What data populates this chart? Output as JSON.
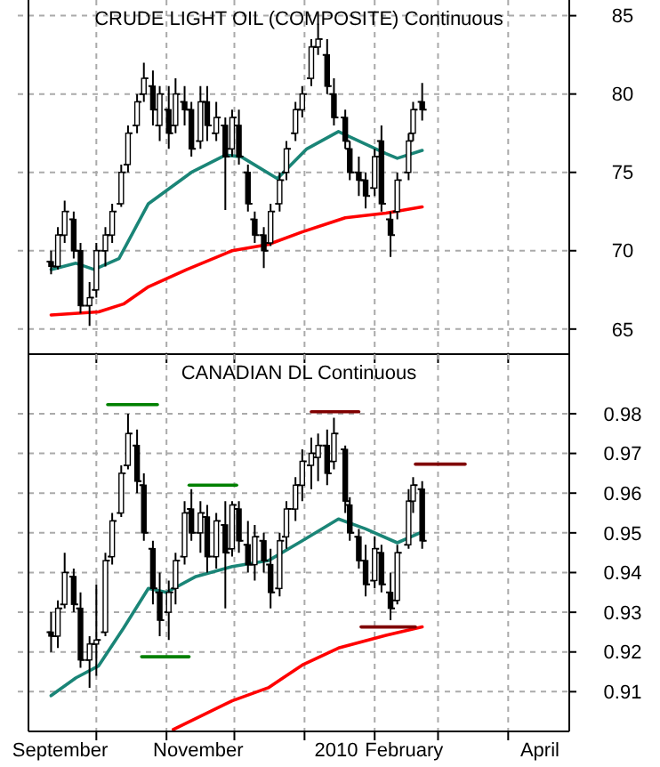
{
  "chart_data": [
    {
      "type": "candlestick",
      "title": "CRUDE LIGHT OIL (COMPOSITE) Continuous",
      "color": "#000000",
      "tick_labels": "y",
      "grid": true,
      "x": [
        "2009-09-11",
        "2009-09-14",
        "2009-09-17",
        "2009-09-21",
        "2009-09-24",
        "2009-09-28",
        "2009-10-01",
        "2009-10-05",
        "2009-10-08",
        "2009-10-12",
        "2009-10-15",
        "2009-10-19",
        "2009-10-22",
        "2009-10-26",
        "2009-10-29",
        "2009-11-02",
        "2009-11-05",
        "2009-11-09",
        "2009-11-12",
        "2009-11-16",
        "2009-11-19",
        "2009-11-23",
        "2009-11-27",
        "2009-11-30",
        "2009-12-03",
        "2009-12-07",
        "2009-12-10",
        "2009-12-14",
        "2009-12-17",
        "2009-12-21",
        "2009-12-24",
        "2009-12-28",
        "2009-12-31",
        "2010-01-04",
        "2010-01-07",
        "2010-01-11",
        "2010-01-14",
        "2010-01-19",
        "2010-01-21",
        "2010-01-25",
        "2010-01-28",
        "2010-02-01",
        "2010-02-04",
        "2010-02-08",
        "2010-02-11",
        "2010-02-16",
        "2010-02-18",
        "2010-02-22"
      ],
      "ohlc": [
        [
          69.3,
          70,
          68.5,
          69
        ],
        [
          69,
          71.5,
          68.8,
          71
        ],
        [
          71,
          73.2,
          70.5,
          72.5
        ],
        [
          72,
          72.5,
          69.5,
          70
        ],
        [
          70,
          70.5,
          66,
          66.5
        ],
        [
          66.5,
          68,
          65.2,
          67
        ],
        [
          67.5,
          70.5,
          67,
          70
        ],
        [
          70,
          71.5,
          69,
          71
        ],
        [
          71,
          73,
          70.5,
          72.5
        ],
        [
          73,
          75.5,
          72.8,
          75
        ],
        [
          75.5,
          78,
          75,
          77.5
        ],
        [
          78,
          80,
          77.5,
          79.5
        ],
        [
          80,
          82,
          79.5,
          81
        ],
        [
          80.5,
          81.5,
          78,
          79
        ],
        [
          78,
          80.5,
          77,
          80
        ],
        [
          79,
          80.5,
          76.5,
          77.5
        ],
        [
          78,
          81,
          77.5,
          80
        ],
        [
          79.5,
          80.5,
          78,
          79
        ],
        [
          79,
          79.5,
          76,
          76.5
        ],
        [
          77,
          80.5,
          76.5,
          79.5
        ],
        [
          79.5,
          80.5,
          77,
          78
        ],
        [
          77.5,
          79.5,
          77,
          78.5
        ],
        [
          78,
          78.5,
          72.6,
          76
        ],
        [
          76.5,
          79,
          76,
          78.5
        ],
        [
          78,
          79,
          75.5,
          76
        ],
        [
          75,
          75.5,
          72.5,
          73
        ],
        [
          72,
          72.5,
          70.5,
          71
        ],
        [
          71,
          71.5,
          68.9,
          70
        ],
        [
          70.5,
          73,
          70.3,
          72.5
        ],
        [
          73,
          75,
          72.5,
          74.5
        ],
        [
          75,
          77,
          74.5,
          76.5
        ],
        [
          77.5,
          79.5,
          77,
          79
        ],
        [
          79,
          80.5,
          78.5,
          80
        ],
        [
          81,
          83.5,
          80.5,
          83
        ],
        [
          83,
          84.5,
          82.5,
          83.5
        ],
        [
          82.5,
          83.5,
          80,
          80.5
        ],
        [
          80,
          81,
          78,
          78.5
        ],
        [
          78.5,
          79,
          76.5,
          77
        ],
        [
          76.5,
          77,
          74.5,
          75
        ],
        [
          75,
          76,
          73.5,
          74.5
        ],
        [
          74.5,
          75,
          72.7,
          73.5
        ],
        [
          74,
          76.5,
          73.5,
          76
        ],
        [
          77,
          78,
          72.5,
          73
        ],
        [
          72,
          72.5,
          69.6,
          71
        ],
        [
          72.5,
          75,
          72,
          74.5
        ],
        [
          75,
          77.5,
          74.5,
          77
        ],
        [
          77.5,
          79.5,
          77,
          79
        ],
        [
          79.5,
          80.7,
          78.3,
          79
        ]
      ],
      "series": [
        {
          "type": "line",
          "color": "#1a8577",
          "x": [
            "2009-09-11",
            "2009-09-22",
            "2009-09-30",
            "2009-10-11",
            "2009-10-24",
            "2009-11-12",
            "2009-11-27",
            "2009-12-04",
            "2009-12-20",
            "2010-01-02",
            "2010-01-16",
            "2010-02-06",
            "2010-02-11",
            "2010-02-22"
          ],
          "values": [
            68.8,
            69.2,
            68.8,
            69.5,
            73,
            75,
            76.1,
            76,
            74.6,
            76.5,
            77.6,
            76.2,
            75.9,
            76.4
          ]
        },
        {
          "type": "line",
          "color": "#ff0000",
          "x": [
            "2009-09-11",
            "2009-10-02",
            "2009-10-13",
            "2009-10-24",
            "2009-11-10",
            "2009-11-30",
            "2009-12-16",
            "2009-12-31",
            "2010-01-19",
            "2010-02-06",
            "2010-02-22"
          ],
          "values": [
            65.9,
            66.1,
            66.6,
            67.7,
            68.8,
            70,
            70.4,
            71.2,
            72.1,
            72.4,
            72.8
          ]
        }
      ],
      "xlim": [
        "2009-09-01",
        "2010-04-28"
      ],
      "xticks": [
        {
          "value": "2009-10-01",
          "label": null
        },
        {
          "value": "2009-11-01",
          "label": null
        },
        {
          "value": "2009-12-01",
          "label": null
        },
        {
          "value": "2010-01-01",
          "label": null
        },
        {
          "value": "2010-02-01",
          "label": null
        },
        {
          "value": "2010-03-01",
          "label": null
        },
        {
          "value": "2010-04-01",
          "label": null
        }
      ],
      "ylim": [
        63.4,
        86
      ],
      "yticks": [
        65,
        70,
        75,
        80,
        85
      ]
    },
    {
      "type": "candlestick",
      "title": "CANADIAN DL Continuous",
      "color": "#000000",
      "grid": true,
      "x": [
        "2009-09-11",
        "2009-09-14",
        "2009-09-17",
        "2009-09-21",
        "2009-09-24",
        "2009-09-28",
        "2009-10-01",
        "2009-10-05",
        "2009-10-08",
        "2009-10-12",
        "2009-10-15",
        "2009-10-19",
        "2009-10-22",
        "2009-10-26",
        "2009-10-29",
        "2009-11-02",
        "2009-11-05",
        "2009-11-09",
        "2009-11-12",
        "2009-11-16",
        "2009-11-19",
        "2009-11-23",
        "2009-11-27",
        "2009-11-30",
        "2009-12-03",
        "2009-12-07",
        "2009-12-10",
        "2009-12-14",
        "2009-12-17",
        "2009-12-21",
        "2009-12-24",
        "2009-12-28",
        "2009-12-31",
        "2010-01-04",
        "2010-01-07",
        "2010-01-11",
        "2010-01-14",
        "2010-01-19",
        "2010-01-21",
        "2010-01-25",
        "2010-01-28",
        "2010-02-01",
        "2010-02-04",
        "2010-02-08",
        "2010-02-11",
        "2010-02-16",
        "2010-02-18",
        "2010-02-22"
      ],
      "ohlc": [
        [
          0.925,
          0.93,
          0.92,
          0.924
        ],
        [
          0.924,
          0.933,
          0.921,
          0.931
        ],
        [
          0.932,
          0.945,
          0.931,
          0.94
        ],
        [
          0.939,
          0.941,
          0.93,
          0.932
        ],
        [
          0.931,
          0.935,
          0.916,
          0.918
        ],
        [
          0.918,
          0.924,
          0.911,
          0.922
        ],
        [
          0.922,
          0.937,
          0.914,
          0.923
        ],
        [
          0.925,
          0.945,
          0.924,
          0.943
        ],
        [
          0.944,
          0.955,
          0.942,
          0.953
        ],
        [
          0.955,
          0.967,
          0.954,
          0.965
        ],
        [
          0.967,
          0.98,
          0.966,
          0.975
        ],
        [
          0.972,
          0.976,
          0.96,
          0.963
        ],
        [
          0.962,
          0.965,
          0.948,
          0.95
        ],
        [
          0.946,
          0.948,
          0.932,
          0.936
        ],
        [
          0.935,
          0.94,
          0.924,
          0.928
        ],
        [
          0.93,
          0.938,
          0.923,
          0.935
        ],
        [
          0.936,
          0.945,
          0.932,
          0.943
        ],
        [
          0.944,
          0.958,
          0.942,
          0.955
        ],
        [
          0.956,
          0.961,
          0.948,
          0.95
        ],
        [
          0.95,
          0.958,
          0.945,
          0.955
        ],
        [
          0.954,
          0.957,
          0.94,
          0.944
        ],
        [
          0.944,
          0.955,
          0.941,
          0.953
        ],
        [
          0.952,
          0.958,
          0.931,
          0.945
        ],
        [
          0.946,
          0.958,
          0.944,
          0.957
        ],
        [
          0.956,
          0.958,
          0.945,
          0.948
        ],
        [
          0.947,
          0.953,
          0.94,
          0.942
        ],
        [
          0.942,
          0.952,
          0.938,
          0.949
        ],
        [
          0.948,
          0.95,
          0.94,
          0.943
        ],
        [
          0.942,
          0.946,
          0.931,
          0.935
        ],
        [
          0.936,
          0.95,
          0.934,
          0.948
        ],
        [
          0.949,
          0.958,
          0.946,
          0.956
        ],
        [
          0.956,
          0.964,
          0.953,
          0.962
        ],
        [
          0.962,
          0.971,
          0.958,
          0.968
        ],
        [
          0.967,
          0.974,
          0.961,
          0.97
        ],
        [
          0.969,
          0.975,
          0.963,
          0.972
        ],
        [
          0.972,
          0.976,
          0.962,
          0.965
        ],
        [
          0.968,
          0.979,
          0.966,
          0.975
        ],
        [
          0.971,
          0.972,
          0.955,
          0.958
        ],
        [
          0.957,
          0.959,
          0.948,
          0.95
        ],
        [
          0.949,
          0.951,
          0.941,
          0.943
        ],
        [
          0.943,
          0.947,
          0.934,
          0.937
        ],
        [
          0.938,
          0.949,
          0.936,
          0.946
        ],
        [
          0.945,
          0.947,
          0.935,
          0.937
        ],
        [
          0.935,
          0.94,
          0.928,
          0.931
        ],
        [
          0.933,
          0.947,
          0.932,
          0.945
        ],
        [
          0.947,
          0.961,
          0.946,
          0.958
        ],
        [
          0.958,
          0.964,
          0.955,
          0.962
        ],
        [
          0.961,
          0.963,
          0.946,
          0.948
        ]
      ],
      "series": [
        {
          "type": "line",
          "color": "#1a8577",
          "x": [
            "2009-09-11",
            "2009-09-22",
            "2009-10-02",
            "2009-10-13",
            "2009-10-24",
            "2009-11-01",
            "2009-11-14",
            "2009-11-30",
            "2009-12-16",
            "2009-12-31",
            "2010-01-16",
            "2010-01-28",
            "2010-02-11",
            "2010-02-21"
          ],
          "values": [
            0.909,
            0.9135,
            0.9165,
            0.926,
            0.936,
            0.935,
            0.939,
            0.9415,
            0.943,
            0.948,
            0.9535,
            0.951,
            0.9475,
            0.95
          ]
        },
        {
          "type": "line",
          "color": "#ff0000",
          "x": [
            "2009-11-04",
            "2009-11-30",
            "2009-12-16",
            "2009-12-31",
            "2010-01-16",
            "2010-02-06",
            "2010-02-22"
          ],
          "values": [
            0.9005,
            0.9077,
            0.911,
            0.9167,
            0.921,
            0.9242,
            0.9263
          ]
        },
        {
          "type": "line",
          "color": "#008000",
          "x": [
            "2009-10-06",
            "2009-10-28"
          ],
          "values": [
            0.9823,
            0.9823
          ]
        },
        {
          "type": "line",
          "color": "#008000",
          "x": [
            "2009-10-21",
            "2009-11-11"
          ],
          "values": [
            0.9188,
            0.9188
          ]
        },
        {
          "type": "line",
          "color": "#008000",
          "x": [
            "2009-11-11",
            "2009-12-02"
          ],
          "values": [
            0.962,
            0.962
          ]
        },
        {
          "type": "line",
          "color": "#800000",
          "x": [
            "2010-01-04",
            "2010-01-25"
          ],
          "values": [
            0.9805,
            0.9805
          ]
        },
        {
          "type": "line",
          "color": "#800000",
          "x": [
            "2010-01-26",
            "2010-02-19"
          ],
          "values": [
            0.9263,
            0.9263
          ]
        },
        {
          "type": "line",
          "color": "#800000",
          "x": [
            "2010-02-19",
            "2010-03-13"
          ],
          "values": [
            0.9673,
            0.9673
          ]
        }
      ],
      "xlim": [
        "2009-09-01",
        "2010-04-28"
      ],
      "xticks": [
        {
          "value": "2009-09-15",
          "label": "September"
        },
        {
          "value": "2009-10-01",
          "label": null
        },
        {
          "value": "2009-11-01",
          "label": null
        },
        {
          "value": "2009-11-15",
          "label": "November"
        },
        {
          "value": "2009-12-01",
          "label": null
        },
        {
          "value": "2010-01-01",
          "label": null
        },
        {
          "value": "2010-01-15",
          "label": "2010"
        },
        {
          "value": "2010-02-01",
          "label": null
        },
        {
          "value": "2010-02-14",
          "label": "February"
        },
        {
          "value": "2010-03-01",
          "label": null
        },
        {
          "value": "2010-04-01",
          "label": null
        },
        {
          "value": "2010-04-15",
          "label": "April"
        }
      ],
      "ylim": [
        0.9,
        0.995
      ],
      "yticks": [
        0.91,
        0.92,
        0.93,
        0.94,
        0.95,
        0.96,
        0.97,
        0.98
      ]
    }
  ]
}
